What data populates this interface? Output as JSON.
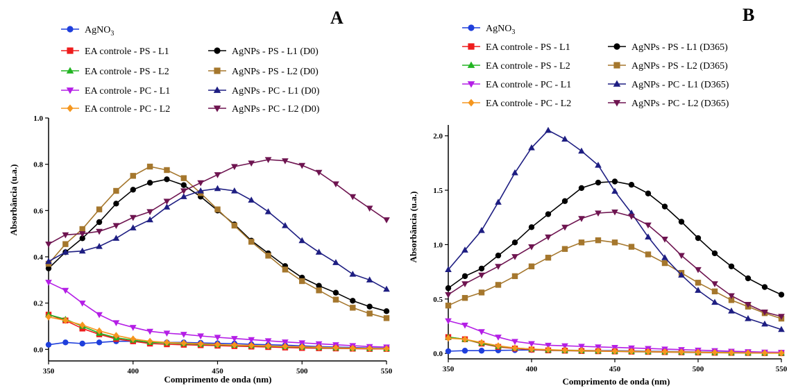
{
  "chart_data": [
    {
      "panel": "A",
      "type": "line",
      "xlabel": "Comprimento de onda (nm)",
      "ylabel": "Absorbância (u.a.)",
      "xlim": [
        350,
        550
      ],
      "ylim": [
        -0.05,
        1.0
      ],
      "xticks": [
        350,
        400,
        450,
        500,
        550
      ],
      "yticks": [
        0.0,
        0.2,
        0.4,
        0.6,
        0.8,
        1.0
      ],
      "ytick_labels": [
        "0.0",
        "0.2",
        "0.4",
        "0.6",
        "0.8",
        "1.0"
      ],
      "grid": false,
      "legend": "top, two columns",
      "x": [
        350,
        360,
        370,
        380,
        390,
        400,
        410,
        420,
        430,
        440,
        450,
        460,
        470,
        480,
        490,
        500,
        510,
        520,
        530,
        540,
        550
      ],
      "series": [
        {
          "name": "AgNO",
          "sub": "3",
          "color": "#1f3fdc",
          "marker": "circle",
          "values": [
            0.02,
            0.03,
            0.025,
            0.03,
            0.035,
            0.035,
            0.03,
            0.03,
            0.03,
            0.028,
            0.026,
            0.025,
            0.022,
            0.02,
            0.018,
            0.015,
            0.012,
            0.01,
            0.008,
            0.006,
            0.005
          ]
        },
        {
          "name": "EA controle - PS - L1",
          "color": "#ee1c1c",
          "marker": "square",
          "values": [
            0.15,
            0.125,
            0.09,
            0.065,
            0.045,
            0.035,
            0.025,
            0.022,
            0.02,
            0.018,
            0.016,
            0.014,
            0.012,
            0.01,
            0.008,
            0.006,
            0.005,
            0.004,
            0.003,
            0.002,
            0.002
          ]
        },
        {
          "name": "EA controle - PS - L2",
          "color": "#22b422",
          "marker": "triangle",
          "values": [
            0.15,
            0.13,
            0.1,
            0.07,
            0.05,
            0.04,
            0.03,
            0.028,
            0.025,
            0.022,
            0.02,
            0.018,
            0.016,
            0.014,
            0.012,
            0.01,
            0.008,
            0.006,
            0.005,
            0.004,
            0.003
          ]
        },
        {
          "name": "EA controle - PC - L1",
          "color": "#b41ee6",
          "marker": "triangle-down",
          "values": [
            0.29,
            0.255,
            0.2,
            0.15,
            0.115,
            0.095,
            0.078,
            0.07,
            0.065,
            0.058,
            0.052,
            0.047,
            0.042,
            0.037,
            0.032,
            0.028,
            0.024,
            0.02,
            0.016,
            0.012,
            0.01
          ]
        },
        {
          "name": "EA controle - PC - L2",
          "color": "#f5961e",
          "marker": "diamond",
          "values": [
            0.14,
            0.125,
            0.105,
            0.08,
            0.06,
            0.045,
            0.035,
            0.03,
            0.027,
            0.024,
            0.021,
            0.019,
            0.017,
            0.015,
            0.013,
            0.011,
            0.009,
            0.007,
            0.005,
            0.004,
            0.003
          ]
        },
        {
          "name": "AgNPs - PS - L1 (D0)",
          "color": "#000000",
          "marker": "circle",
          "values": [
            0.35,
            0.42,
            0.48,
            0.55,
            0.63,
            0.69,
            0.72,
            0.735,
            0.71,
            0.66,
            0.6,
            0.54,
            0.47,
            0.415,
            0.36,
            0.31,
            0.275,
            0.245,
            0.21,
            0.185,
            0.165
          ]
        },
        {
          "name": "AgNPs - PS - L2 (D0)",
          "color": "#a5772d",
          "marker": "square",
          "values": [
            0.37,
            0.455,
            0.52,
            0.605,
            0.685,
            0.75,
            0.79,
            0.775,
            0.74,
            0.675,
            0.605,
            0.535,
            0.465,
            0.405,
            0.345,
            0.295,
            0.255,
            0.215,
            0.18,
            0.155,
            0.135
          ]
        },
        {
          "name": "AgNPs - PC - L1 (D0)",
          "color": "#1e1e82",
          "marker": "triangle",
          "values": [
            0.38,
            0.42,
            0.425,
            0.445,
            0.48,
            0.525,
            0.56,
            0.615,
            0.66,
            0.685,
            0.695,
            0.685,
            0.645,
            0.595,
            0.535,
            0.47,
            0.42,
            0.375,
            0.325,
            0.3,
            0.26
          ]
        },
        {
          "name": "AgNPs - PC - L2 (D0)",
          "color": "#6e1450",
          "marker": "triangle-down",
          "values": [
            0.455,
            0.495,
            0.5,
            0.51,
            0.535,
            0.57,
            0.595,
            0.64,
            0.685,
            0.72,
            0.755,
            0.79,
            0.805,
            0.82,
            0.815,
            0.795,
            0.765,
            0.715,
            0.66,
            0.61,
            0.56
          ]
        }
      ]
    },
    {
      "panel": "B",
      "type": "line",
      "xlabel": "Comprimento de onda (nm)",
      "ylabel": "Absorbância (u.a.)",
      "xlim": [
        350,
        550
      ],
      "ylim": [
        -0.05,
        2.1
      ],
      "xticks": [
        350,
        400,
        450,
        500,
        550
      ],
      "yticks": [
        0.0,
        0.5,
        1.0,
        1.5,
        2.0
      ],
      "ytick_labels": [
        "0.0",
        "0.5",
        "1.0",
        "1.5",
        "2.0"
      ],
      "grid": false,
      "legend": "top, two columns",
      "x": [
        350,
        360,
        370,
        380,
        390,
        400,
        410,
        420,
        430,
        440,
        450,
        460,
        470,
        480,
        490,
        500,
        510,
        520,
        530,
        540,
        550
      ],
      "series": [
        {
          "name": "AgNO",
          "sub": "3",
          "color": "#1f3fdc",
          "marker": "circle",
          "values": [
            0.02,
            0.025,
            0.025,
            0.028,
            0.03,
            0.032,
            0.03,
            0.03,
            0.028,
            0.026,
            0.025,
            0.023,
            0.02,
            0.018,
            0.016,
            0.014,
            0.012,
            0.01,
            0.008,
            0.006,
            0.005
          ]
        },
        {
          "name": "EA controle - PS - L1",
          "color": "#ee1c1c",
          "marker": "square",
          "values": [
            0.15,
            0.13,
            0.09,
            0.06,
            0.045,
            0.035,
            0.028,
            0.025,
            0.022,
            0.02,
            0.018,
            0.016,
            0.014,
            0.012,
            0.01,
            0.008,
            0.006,
            0.005,
            0.004,
            0.003,
            0.002
          ]
        },
        {
          "name": "EA controle - PS - L2",
          "color": "#22b422",
          "marker": "triangle",
          "values": [
            0.15,
            0.13,
            0.095,
            0.065,
            0.05,
            0.04,
            0.032,
            0.028,
            0.025,
            0.022,
            0.02,
            0.018,
            0.016,
            0.014,
            0.012,
            0.01,
            0.008,
            0.006,
            0.005,
            0.004,
            0.003
          ]
        },
        {
          "name": "EA controle - PC - L1",
          "color": "#b41ee6",
          "marker": "triangle-down",
          "values": [
            0.3,
            0.26,
            0.2,
            0.15,
            0.11,
            0.09,
            0.075,
            0.07,
            0.065,
            0.06,
            0.055,
            0.05,
            0.045,
            0.04,
            0.035,
            0.03,
            0.025,
            0.02,
            0.016,
            0.012,
            0.01
          ]
        },
        {
          "name": "EA controle - PC - L2",
          "color": "#f5961e",
          "marker": "diamond",
          "values": [
            0.14,
            0.13,
            0.1,
            0.07,
            0.05,
            0.04,
            0.035,
            0.03,
            0.027,
            0.024,
            0.021,
            0.019,
            0.017,
            0.015,
            0.013,
            0.011,
            0.009,
            0.007,
            0.005,
            0.004,
            0.003
          ]
        },
        {
          "name": "AgNPs - PS - L1 (D365)",
          "color": "#000000",
          "marker": "circle",
          "values": [
            0.6,
            0.71,
            0.78,
            0.9,
            1.02,
            1.16,
            1.28,
            1.4,
            1.52,
            1.57,
            1.58,
            1.55,
            1.47,
            1.35,
            1.21,
            1.06,
            0.92,
            0.8,
            0.69,
            0.61,
            0.54
          ]
        },
        {
          "name": "AgNPs - PS - L2 (D365)",
          "color": "#a5772d",
          "marker": "square",
          "values": [
            0.44,
            0.51,
            0.56,
            0.63,
            0.71,
            0.8,
            0.88,
            0.96,
            1.02,
            1.04,
            1.02,
            0.98,
            0.91,
            0.83,
            0.74,
            0.65,
            0.57,
            0.49,
            0.43,
            0.37,
            0.32
          ]
        },
        {
          "name": "AgNPs - PC - L1 (D365)",
          "color": "#1e1e82",
          "marker": "triangle",
          "values": [
            0.77,
            0.95,
            1.13,
            1.39,
            1.66,
            1.89,
            2.05,
            1.97,
            1.86,
            1.73,
            1.49,
            1.29,
            1.07,
            0.88,
            0.72,
            0.58,
            0.47,
            0.39,
            0.32,
            0.27,
            0.22
          ]
        },
        {
          "name": "AgNPs - PC - L2 (D365)",
          "color": "#6e1450",
          "marker": "triangle-down",
          "values": [
            0.54,
            0.64,
            0.72,
            0.8,
            0.89,
            0.98,
            1.07,
            1.16,
            1.24,
            1.29,
            1.3,
            1.26,
            1.18,
            1.05,
            0.9,
            0.77,
            0.64,
            0.53,
            0.45,
            0.38,
            0.34
          ]
        }
      ]
    }
  ]
}
